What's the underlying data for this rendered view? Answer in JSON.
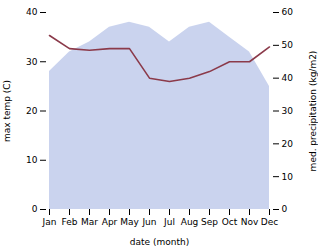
{
  "chart_data": {
    "type": "area",
    "categories": [
      "Jan",
      "Feb",
      "Mar",
      "Apr",
      "May",
      "Jun",
      "Jul",
      "Aug",
      "Sep",
      "Oct",
      "Nov",
      "Dec"
    ],
    "xlabel": "date (month)",
    "ylabel": "max temp (C)",
    "y2label": "med. precipitation (kg/m2)",
    "ylim": [
      0,
      40
    ],
    "yticks": [
      0,
      10,
      20,
      30,
      40
    ],
    "y2lim": [
      0,
      60
    ],
    "y2ticks": [
      0,
      10,
      20,
      30,
      40,
      50,
      60
    ],
    "grid": false,
    "series": [
      {
        "type": "area",
        "color": "#b8c4e8",
        "values": [
          28,
          32,
          34,
          37,
          38,
          37,
          34,
          37,
          38,
          35,
          32,
          25
        ]
      },
      {
        "type": "line",
        "color": "#8b3a4a",
        "axis": "y2",
        "values": [
          53,
          49,
          48.5,
          49,
          49,
          40,
          39,
          40,
          42,
          45,
          45,
          49.5
        ]
      }
    ]
  }
}
